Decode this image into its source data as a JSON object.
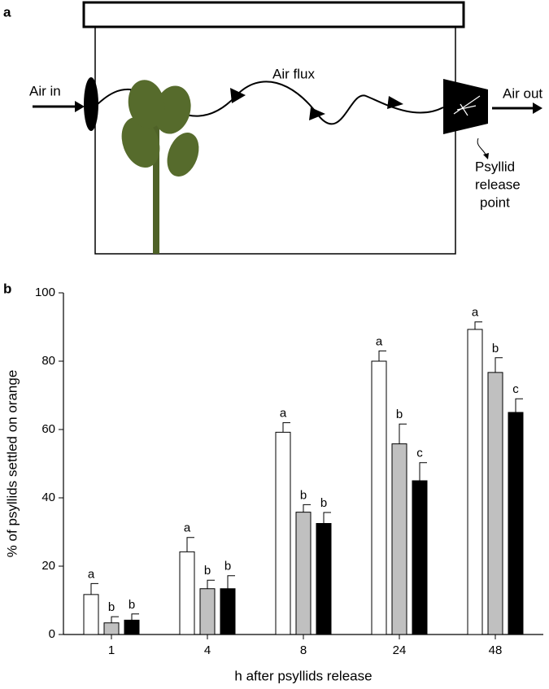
{
  "panels": [
    "a",
    "b"
  ],
  "diagram": {
    "air_in": "Air in",
    "air_flux": "Air flux",
    "air_out": "Air out",
    "release_point": [
      "Psyllid",
      "release",
      "point"
    ]
  },
  "chart_data": {
    "type": "bar",
    "ylabel": "% of psyllids settled on orange",
    "xlabel": "h after psyllids release",
    "categories": [
      "1",
      "4",
      "8",
      "24",
      "48"
    ],
    "series": [
      {
        "color": "#ffffff",
        "values": [
          11.7,
          24.2,
          59.2,
          80,
          89.3
        ],
        "errors": [
          3.2,
          4.2,
          2.8,
          3,
          2.2
        ],
        "letters": [
          "a",
          "a",
          "a",
          "a",
          "a"
        ]
      },
      {
        "color": "#c0c0c0",
        "values": [
          3.4,
          13.4,
          35.8,
          55.8,
          76.7
        ],
        "errors": [
          1.8,
          2.5,
          2.2,
          5.8,
          4.3
        ],
        "letters": [
          "b",
          "b",
          "b",
          "b",
          "b"
        ]
      },
      {
        "color": "#000000",
        "values": [
          4.2,
          13.4,
          32.5,
          45,
          65
        ],
        "errors": [
          1.8,
          3.8,
          3.2,
          5.3,
          4
        ],
        "letters": [
          "b",
          "b",
          "b",
          "c",
          "c"
        ]
      }
    ],
    "ylim": [
      0,
      100
    ],
    "yticks": [
      0,
      20,
      40,
      60,
      80,
      100
    ]
  }
}
